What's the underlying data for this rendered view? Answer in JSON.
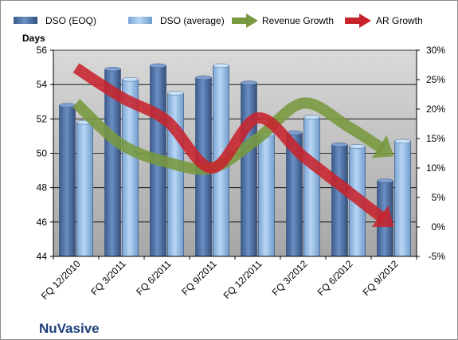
{
  "chart_data": {
    "type": "bar",
    "company": "NuVasive",
    "ylabel": "Days",
    "categories": [
      "FQ 12/2010",
      "FQ 3/2011",
      "FQ 6/2011",
      "FQ 9/2011",
      "FQ 12/2011",
      "FQ 3/2012",
      "FQ 6/2012",
      "FQ 9/2012"
    ],
    "ylim": [
      44,
      56
    ],
    "yticks": [
      44,
      46,
      48,
      50,
      52,
      54,
      56
    ],
    "y2lim": [
      -5,
      30
    ],
    "y2ticks": [
      "-5%",
      "0%",
      "5%",
      "10%",
      "15%",
      "20%",
      "25%",
      "30%"
    ],
    "grid": true,
    "legend_position": "top",
    "series": [
      {
        "name": "DSO (EOQ)",
        "kind": "bar",
        "axis": "left",
        "color": "#5b7fb6",
        "values": [
          52.8,
          54.9,
          55.1,
          54.4,
          54.1,
          51.2,
          50.5,
          48.4
        ]
      },
      {
        "name": "DSO (average)",
        "kind": "bar",
        "axis": "left",
        "color": "#9cc4ec",
        "values": [
          51.8,
          54.3,
          53.5,
          55.1,
          51.1,
          52.1,
          50.4,
          50.7
        ]
      },
      {
        "name": "Revenue Growth",
        "kind": "arrow",
        "axis": "right",
        "color": "#77993f",
        "values": [
          21,
          14,
          11,
          10,
          15,
          21,
          17,
          12
        ]
      },
      {
        "name": "AR Growth",
        "kind": "arrow",
        "axis": "right",
        "color": "#c8232c",
        "values": [
          27,
          22,
          18,
          10,
          18.5,
          12,
          6,
          0
        ]
      }
    ]
  }
}
